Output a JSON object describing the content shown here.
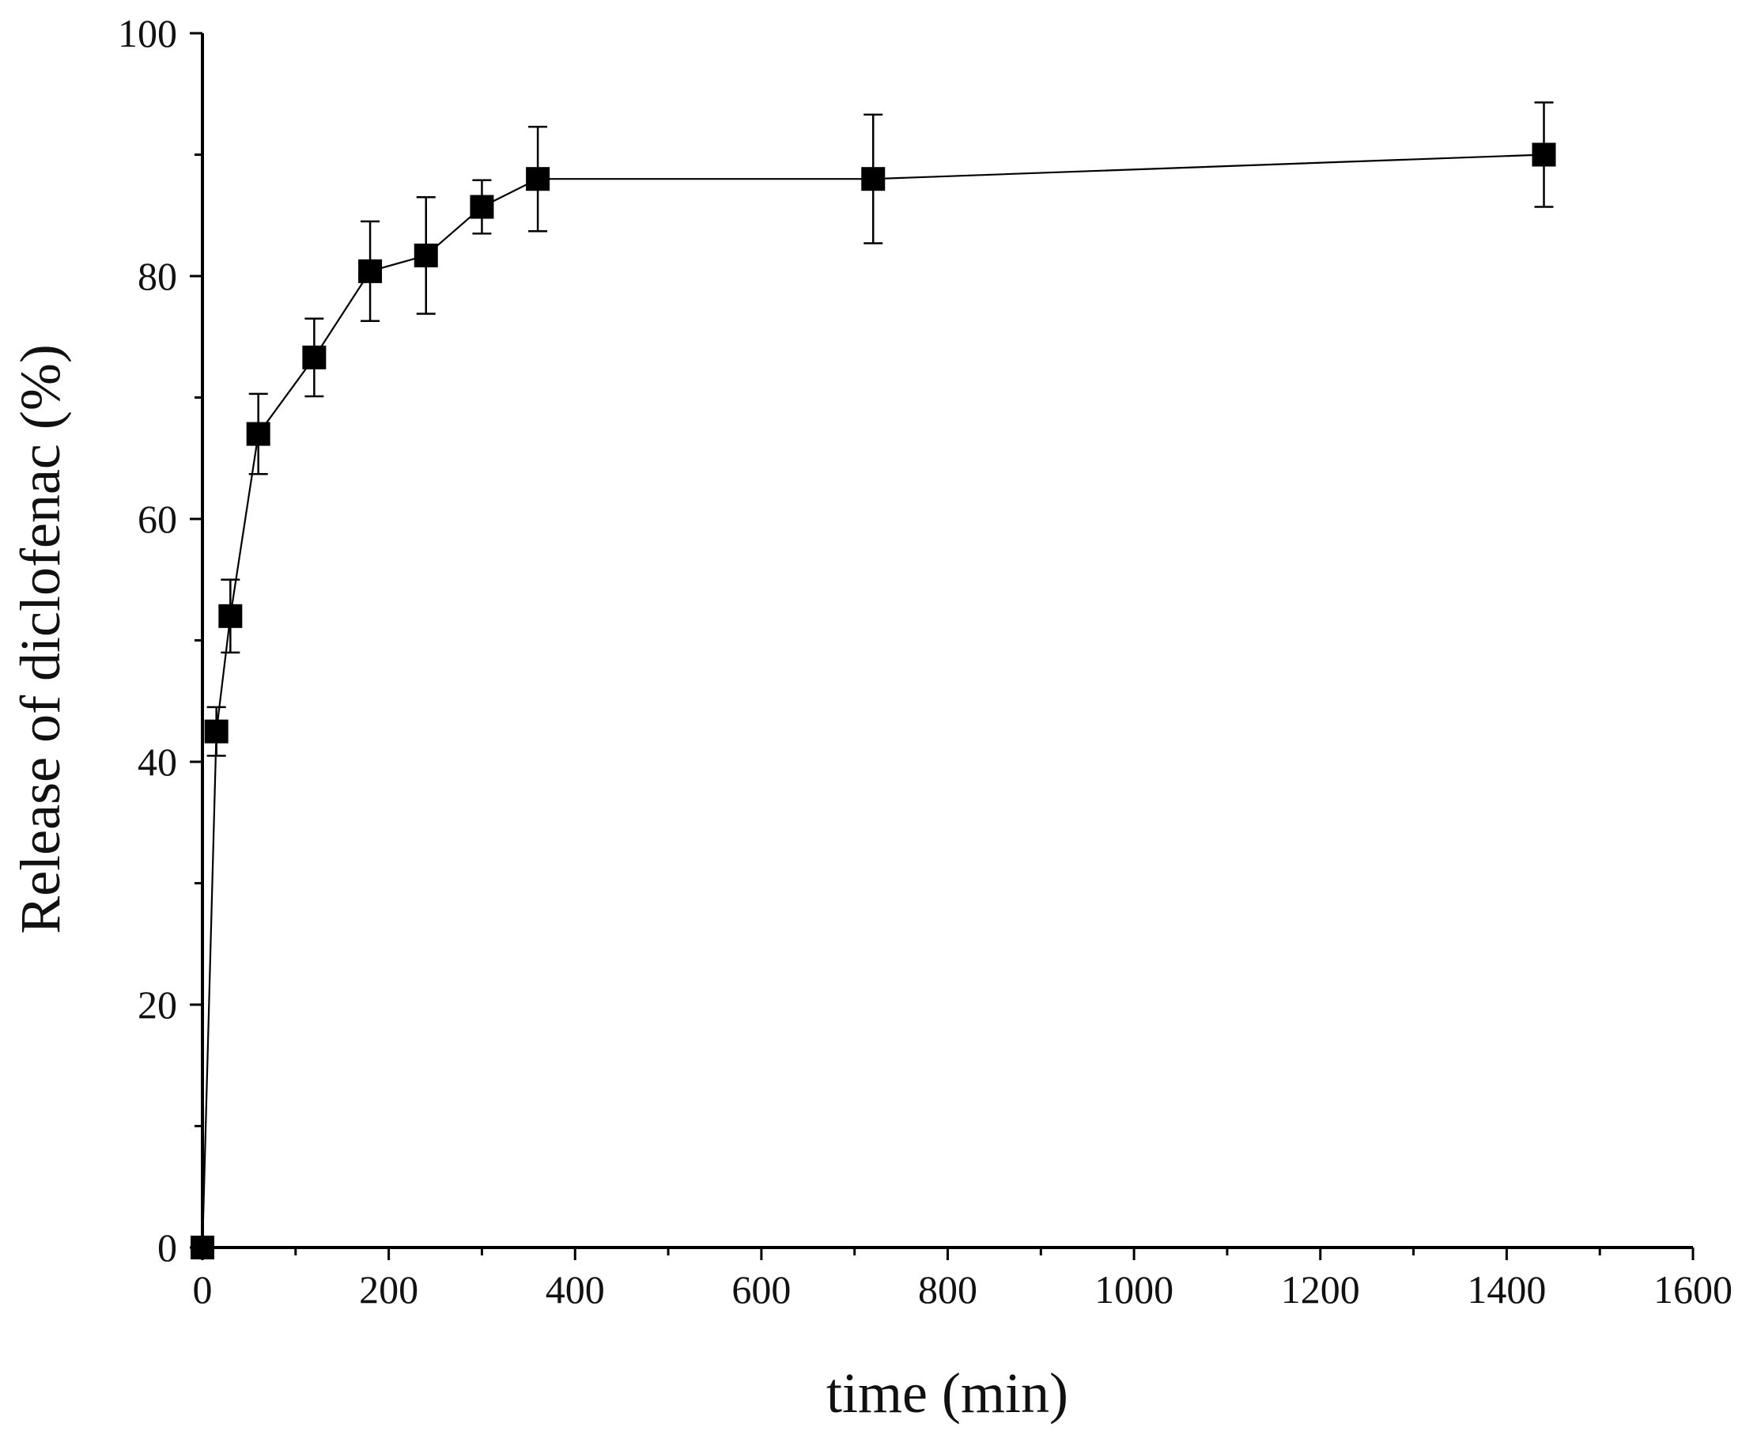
{
  "chart_data": {
    "type": "scatter",
    "title": "",
    "xlabel": "time (min)",
    "ylabel": "Release of diclofenac (%)",
    "xlim": [
      0,
      1600
    ],
    "ylim": [
      0,
      100
    ],
    "x_ticks": [
      0,
      200,
      400,
      600,
      800,
      1000,
      1200,
      1400,
      1600
    ],
    "y_ticks": [
      0,
      20,
      40,
      60,
      80,
      100
    ],
    "x_tick_labels": [
      "0",
      "200",
      "400",
      "600",
      "800",
      "1000",
      "1200",
      "1400",
      "1600"
    ],
    "y_tick_labels": [
      "0",
      "20",
      "40",
      "60",
      "80",
      "100"
    ],
    "grid": false,
    "legend": "none",
    "marker": "square",
    "connected_by_line": true,
    "series": [
      {
        "x": [
          0,
          15,
          30,
          60,
          120,
          180,
          240,
          300,
          360,
          720,
          1440
        ],
        "y": [
          0,
          42.5,
          52,
          67,
          73.3,
          80.4,
          81.7,
          85.7,
          88,
          88,
          90
        ],
        "error": [
          0,
          2,
          3,
          3.3,
          3.2,
          4.1,
          4.8,
          2.2,
          4.3,
          5.3,
          4.3
        ]
      }
    ]
  }
}
